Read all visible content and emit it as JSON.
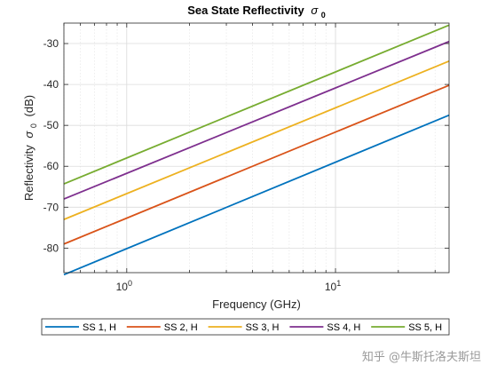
{
  "chart_data": {
    "type": "line",
    "title": "Sea State Reflectivity",
    "title_symbol": "σ",
    "title_subscript": "0",
    "xlabel": "Frequency (GHz)",
    "ylabel_prefix": "Reflectivity",
    "ylabel_symbol": "σ",
    "ylabel_subscript": "0",
    "ylabel_suffix": "(dB)",
    "xscale": "log",
    "xlim": [
      0.5,
      35
    ],
    "ylim": [
      -86,
      -25
    ],
    "yticks": [
      -80,
      -70,
      -60,
      -50,
      -40,
      -30
    ],
    "xticks": [
      {
        "value": 1,
        "base": "10",
        "exp": "0"
      },
      {
        "value": 10,
        "base": "10",
        "exp": "1"
      }
    ],
    "grid": true,
    "minor_grid_x": true,
    "legend_position": "bottom-outside",
    "series": [
      {
        "name": "SS 1, H",
        "color": "#0072BD",
        "x": [
          0.5,
          35
        ],
        "y": [
          -86.5,
          -47.5
        ]
      },
      {
        "name": "SS 2, H",
        "color": "#D95319",
        "x": [
          0.5,
          35
        ],
        "y": [
          -79,
          -40.2
        ]
      },
      {
        "name": "SS 3, H",
        "color": "#EDB120",
        "x": [
          0.5,
          35
        ],
        "y": [
          -73,
          -34.3
        ]
      },
      {
        "name": "SS 4, H",
        "color": "#7E2F8E",
        "x": [
          0.5,
          35
        ],
        "y": [
          -68,
          -29.5
        ]
      },
      {
        "name": "SS 5, H",
        "color": "#77AC30",
        "x": [
          0.5,
          35
        ],
        "y": [
          -64.3,
          -25.5
        ]
      }
    ]
  },
  "watermark": "知乎 @牛斯托洛夫斯坦"
}
